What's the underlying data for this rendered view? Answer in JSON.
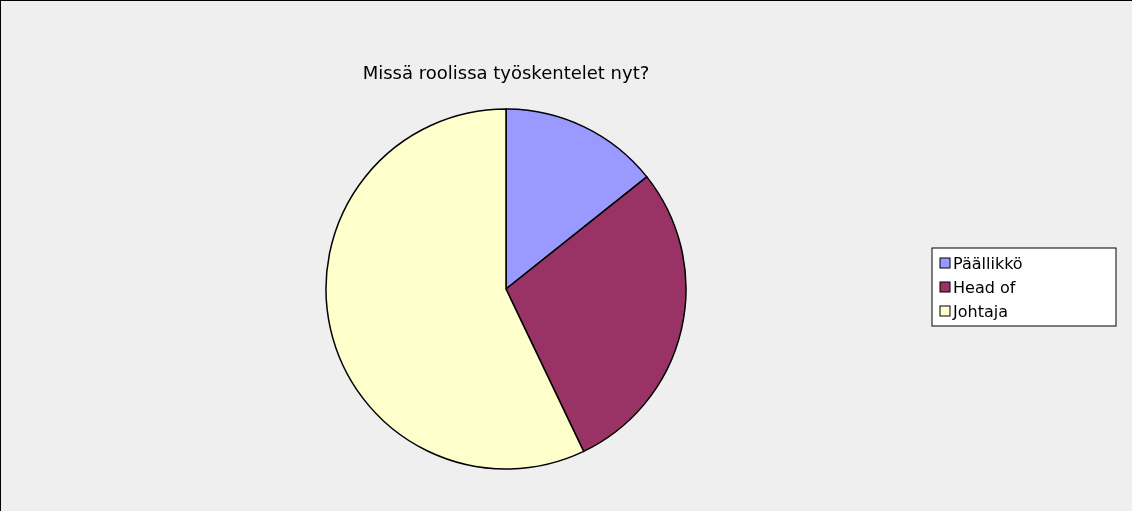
{
  "chart_data": {
    "type": "pie",
    "title": "Missä roolissa työskentelet nyt?",
    "categories": [
      "Päällikkö",
      "Head of",
      "Johtaja"
    ],
    "values": [
      14.3,
      28.6,
      57.1
    ],
    "colors": [
      "#9999ff",
      "#993366",
      "#ffffcc"
    ],
    "legend": "right"
  }
}
